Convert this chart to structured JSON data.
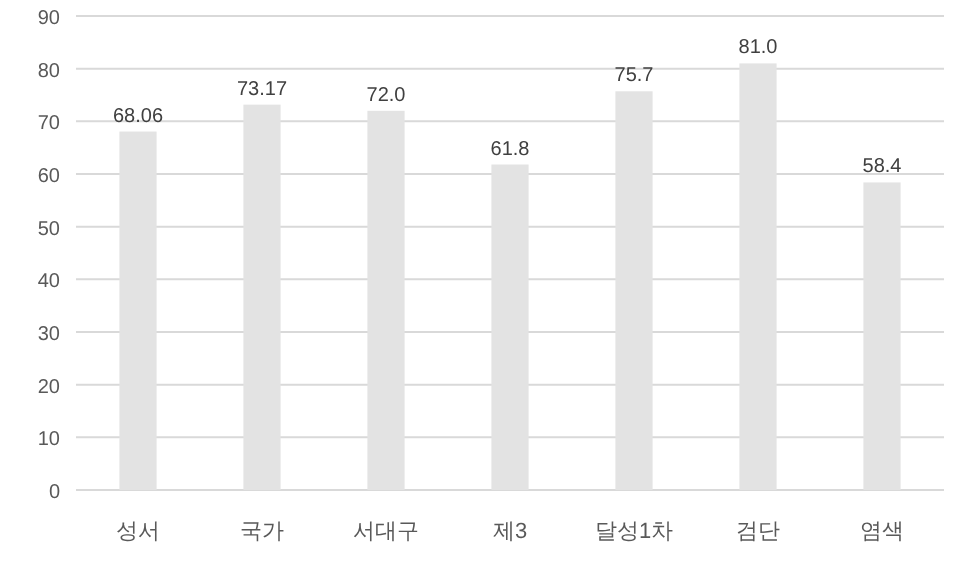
{
  "chart_data": {
    "type": "bar",
    "categories": [
      "성서",
      "국가",
      "서대구",
      "제3",
      "달성1차",
      "검단",
      "염색"
    ],
    "values": [
      68.06,
      73.17,
      72.0,
      61.8,
      75.7,
      81.0,
      58.4
    ],
    "value_labels": [
      "68.06",
      "73.17",
      "72.0",
      "61.8",
      "75.7",
      "81.0",
      "58.4"
    ],
    "color": "#e3e3e3",
    "ylim": [
      0,
      90
    ],
    "yticks": [
      0,
      10,
      20,
      30,
      40,
      50,
      60,
      70,
      80,
      90
    ],
    "grid": "y"
  }
}
